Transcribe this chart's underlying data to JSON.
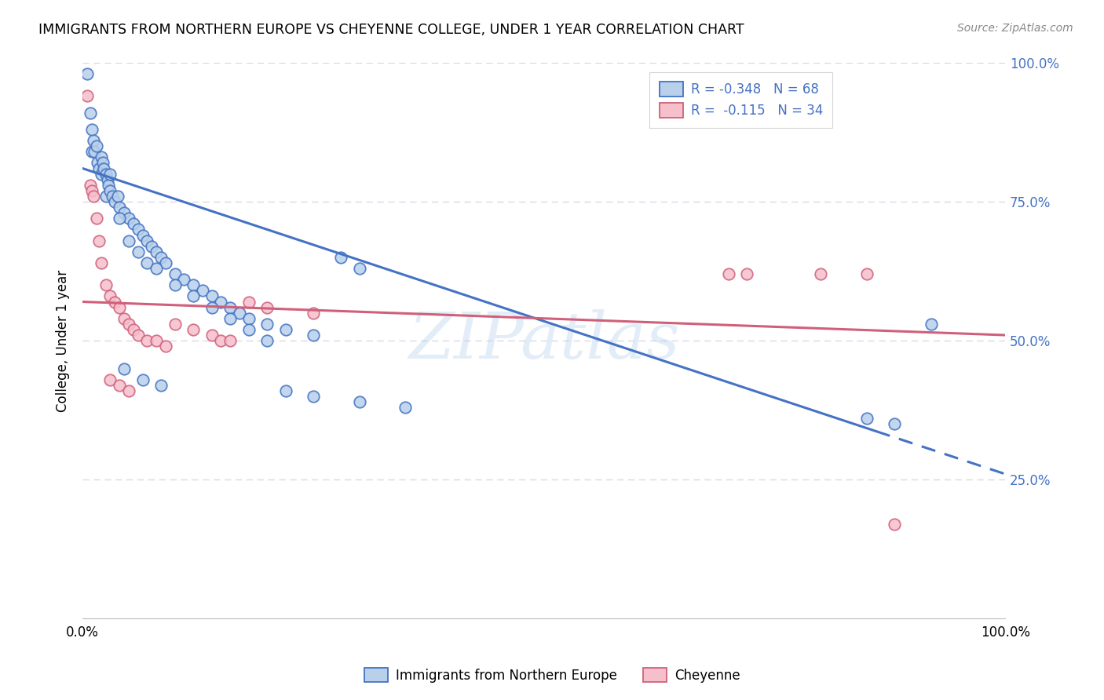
{
  "title": "IMMIGRANTS FROM NORTHERN EUROPE VS CHEYENNE COLLEGE, UNDER 1 YEAR CORRELATION CHART",
  "source": "Source: ZipAtlas.com",
  "ylabel": "College, Under 1 year",
  "blue_R": "-0.348",
  "blue_N": "68",
  "pink_R": "-0.115",
  "pink_N": "34",
  "blue_face": "#b8d0ea",
  "blue_edge": "#4472c4",
  "pink_face": "#f5bfcc",
  "pink_edge": "#d0607a",
  "blue_line_color": "#4472c4",
  "pink_line_color": "#d0607a",
  "legend_blue": "Immigrants from Northern Europe",
  "legend_pink": "Cheyenne",
  "blue_points_x": [
    0.5,
    0.8,
    1.0,
    1.0,
    1.2,
    1.3,
    1.5,
    1.6,
    1.8,
    2.0,
    2.0,
    2.2,
    2.3,
    2.5,
    2.5,
    2.7,
    2.8,
    3.0,
    3.0,
    3.2,
    3.5,
    3.8,
    4.0,
    4.5,
    5.0,
    5.5,
    6.0,
    6.5,
    7.0,
    7.5,
    8.0,
    8.5,
    9.0,
    10.0,
    11.0,
    12.0,
    13.0,
    14.0,
    15.0,
    16.0,
    17.0,
    18.0,
    20.0,
    22.0,
    25.0,
    4.0,
    5.0,
    6.0,
    7.0,
    8.0,
    10.0,
    12.0,
    14.0,
    16.0,
    18.0,
    20.0,
    4.5,
    6.5,
    8.5,
    22.0,
    25.0,
    30.0,
    35.0,
    85.0,
    88.0,
    92.0,
    28.0,
    30.0
  ],
  "blue_points_y": [
    98,
    91,
    88,
    84,
    86,
    84,
    85,
    82,
    81,
    83,
    80,
    82,
    81,
    80,
    76,
    79,
    78,
    77,
    80,
    76,
    75,
    76,
    74,
    73,
    72,
    71,
    70,
    69,
    68,
    67,
    66,
    65,
    64,
    62,
    61,
    60,
    59,
    58,
    57,
    56,
    55,
    54,
    53,
    52,
    51,
    72,
    68,
    66,
    64,
    63,
    60,
    58,
    56,
    54,
    52,
    50,
    45,
    43,
    42,
    41,
    40,
    39,
    38,
    36,
    35,
    53,
    65,
    63
  ],
  "pink_points_x": [
    0.5,
    0.8,
    1.0,
    1.2,
    1.5,
    1.8,
    2.0,
    2.5,
    3.0,
    3.5,
    4.0,
    4.5,
    5.0,
    5.5,
    6.0,
    7.0,
    8.0,
    9.0,
    10.0,
    12.0,
    14.0,
    15.0,
    16.0,
    18.0,
    20.0,
    25.0,
    3.0,
    4.0,
    5.0,
    70.0,
    72.0,
    80.0,
    85.0,
    88.0
  ],
  "pink_points_y": [
    94,
    78,
    77,
    76,
    72,
    68,
    64,
    60,
    58,
    57,
    56,
    54,
    53,
    52,
    51,
    50,
    50,
    49,
    53,
    52,
    51,
    50,
    50,
    57,
    56,
    55,
    43,
    42,
    41,
    62,
    62,
    62,
    62,
    17
  ],
  "blue_line_y0": 81,
  "blue_line_y1": 26,
  "blue_solid_end_x": 86,
  "pink_line_y0": 57,
  "pink_line_y1": 51,
  "xlim": [
    0,
    100
  ],
  "ylim": [
    0,
    100
  ],
  "xtick_positions": [
    0,
    100
  ],
  "xtick_labels": [
    "0.0%",
    "100.0%"
  ],
  "ytick_positions": [
    25,
    50,
    75,
    100
  ],
  "ytick_labels_right": [
    "25.0%",
    "50.0%",
    "75.0%",
    "100.0%"
  ],
  "grid_color": "#d8d8e8",
  "bg": "#ffffff",
  "marker_size": 110,
  "marker_lw": 1.3,
  "marker_alpha": 0.85,
  "line_width": 2.2
}
